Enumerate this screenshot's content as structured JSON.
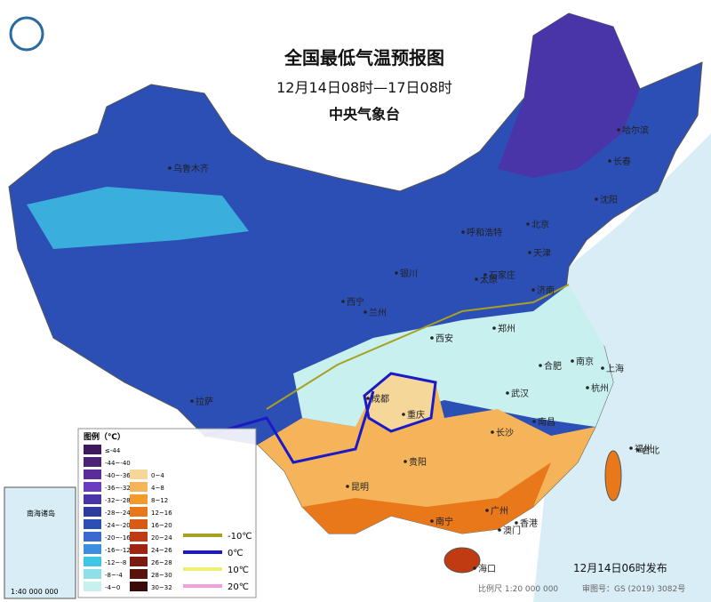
{
  "header": {
    "title": "全国最低气温预报图",
    "period": "12月14日08时—17日08时",
    "agency": "中央气象台"
  },
  "cities": [
    "乌鲁木齐",
    "哈尔滨",
    "长春",
    "沈阳",
    "呼和浩特",
    "北京",
    "天津",
    "石家庄",
    "太原",
    "银川",
    "济南",
    "西宁",
    "兰州",
    "西安",
    "郑州",
    "合肥",
    "南京",
    "上海",
    "成都",
    "重庆",
    "武汉",
    "杭州",
    "拉萨",
    "长沙",
    "南昌",
    "贵阳",
    "福州",
    "台北",
    "昆明",
    "南宁",
    "广州",
    "澳门",
    "香港",
    "海口"
  ],
  "legend": {
    "title": "图例（℃）",
    "ranges": [
      {
        "label": "≤-44",
        "color": "#3d1a5e"
      },
      {
        "label": "-44~-40",
        "color": "#4a2378"
      },
      {
        "label": "-40~-36",
        "color": "#5a2d9a"
      },
      {
        "label": "-36~-32",
        "color": "#6a3cc0"
      },
      {
        "label": "-32~-28",
        "color": "#4a35a8"
      },
      {
        "label": "-28~-24",
        "color": "#2e3c9e"
      },
      {
        "label": "-24~-20",
        "color": "#2c4fb5"
      },
      {
        "label": "-20~-16",
        "color": "#3a6ad0"
      },
      {
        "label": "-16~-12",
        "color": "#3c8ee0"
      },
      {
        "label": "-12~-8",
        "color": "#3fc6e6"
      },
      {
        "label": "-8~-4",
        "color": "#8ee0e8"
      },
      {
        "label": "-4~0",
        "color": "#c8f0ee"
      },
      {
        "label": "0~4",
        "color": "#f5d79a"
      },
      {
        "label": "4~8",
        "color": "#f5b45a"
      },
      {
        "label": "8~12",
        "color": "#f29a2a"
      },
      {
        "label": "12~16",
        "color": "#e8781a"
      },
      {
        "label": "16~20",
        "color": "#d85a14"
      },
      {
        "label": "20~24",
        "color": "#c03a12"
      },
      {
        "label": "24~26",
        "color": "#a02412"
      },
      {
        "label": "26~28",
        "color": "#7a1a10"
      },
      {
        "label": "28~30",
        "color": "#5a120c"
      },
      {
        "label": "30~32",
        "color": "#3a0a08"
      }
    ]
  },
  "isotherms": [
    {
      "label": "-10℃",
      "color": "#a8a020"
    },
    {
      "label": "0℃",
      "color": "#1a1ac8"
    },
    {
      "label": "10℃",
      "color": "#f0f070"
    },
    {
      "label": "20℃",
      "color": "#f0a0e0"
    }
  ],
  "inset": {
    "title": "南海诸岛",
    "scale": "1:40 000 000"
  },
  "footer": {
    "published": "12月14日06时发布",
    "scale": "比例尺 1:20 000 000",
    "approval": "审图号：GS (2019) 3082号"
  }
}
